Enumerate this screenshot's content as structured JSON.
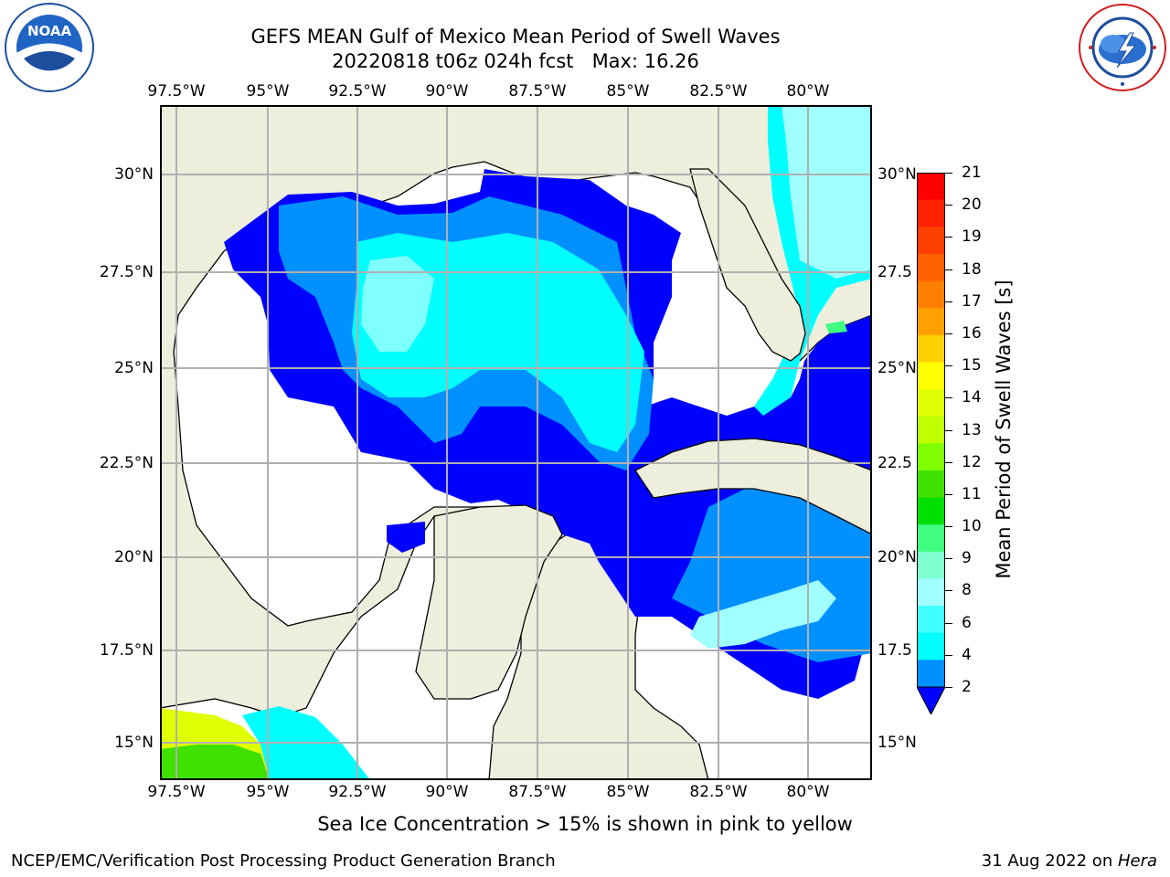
{
  "title": {
    "line1": "GEFS MEAN Gulf of Mexico Mean Period of Swell Waves",
    "line2_run": "20220818 t06z 024h fcst",
    "line2_max": "Max: 16.26"
  },
  "logos": {
    "left": {
      "name": "noaa-logo",
      "text": "NOAA"
    },
    "right": {
      "name": "nws-logo",
      "text": "NATIONAL WEATHER SERVICE"
    }
  },
  "axes": {
    "lon_labels": [
      "97.5°W",
      "95°W",
      "92.5°W",
      "90°W",
      "87.5°W",
      "85°W",
      "82.5°W",
      "80°W"
    ],
    "lat_labels": [
      "30°N",
      "27.5°N",
      "25°N",
      "22.5°N",
      "20°N",
      "17.5°N",
      "15°N"
    ],
    "lat_labels_right": [
      "30°N",
      "27.5",
      "25°N",
      "22.5",
      "20°N",
      "17.5",
      "15°N"
    ]
  },
  "colorbar": {
    "label": "Mean Period of Swell Waves [s]",
    "ticks": [
      "21",
      "20",
      "19",
      "18",
      "17",
      "16",
      "15",
      "14",
      "13",
      "12",
      "11",
      "10",
      "9",
      "8",
      "6",
      "4",
      "2"
    ],
    "colors": [
      "#ff0000",
      "#ff2000",
      "#ff4000",
      "#ff6000",
      "#ff8000",
      "#ffa000",
      "#ffd000",
      "#ffff00",
      "#e0ff00",
      "#c0ff00",
      "#80ff00",
      "#40e000",
      "#00e000",
      "#40ff80",
      "#80ffd0",
      "#a0ffff",
      "#40ffff",
      "#00ffff",
      "#0090ff"
    ],
    "under_color": "#0000ff"
  },
  "map": {
    "land_color": "#eeeedd",
    "ocean_color": "#ffffff",
    "grid_color": "#b0b0b0"
  },
  "note": "Sea Ice Concentration > 15% is shown in pink to yellow",
  "footer": {
    "left": "NCEP/EMC/Verification Post Processing Product Generation Branch",
    "right_date": "31 Aug 2022 on ",
    "right_host": "Hera"
  }
}
